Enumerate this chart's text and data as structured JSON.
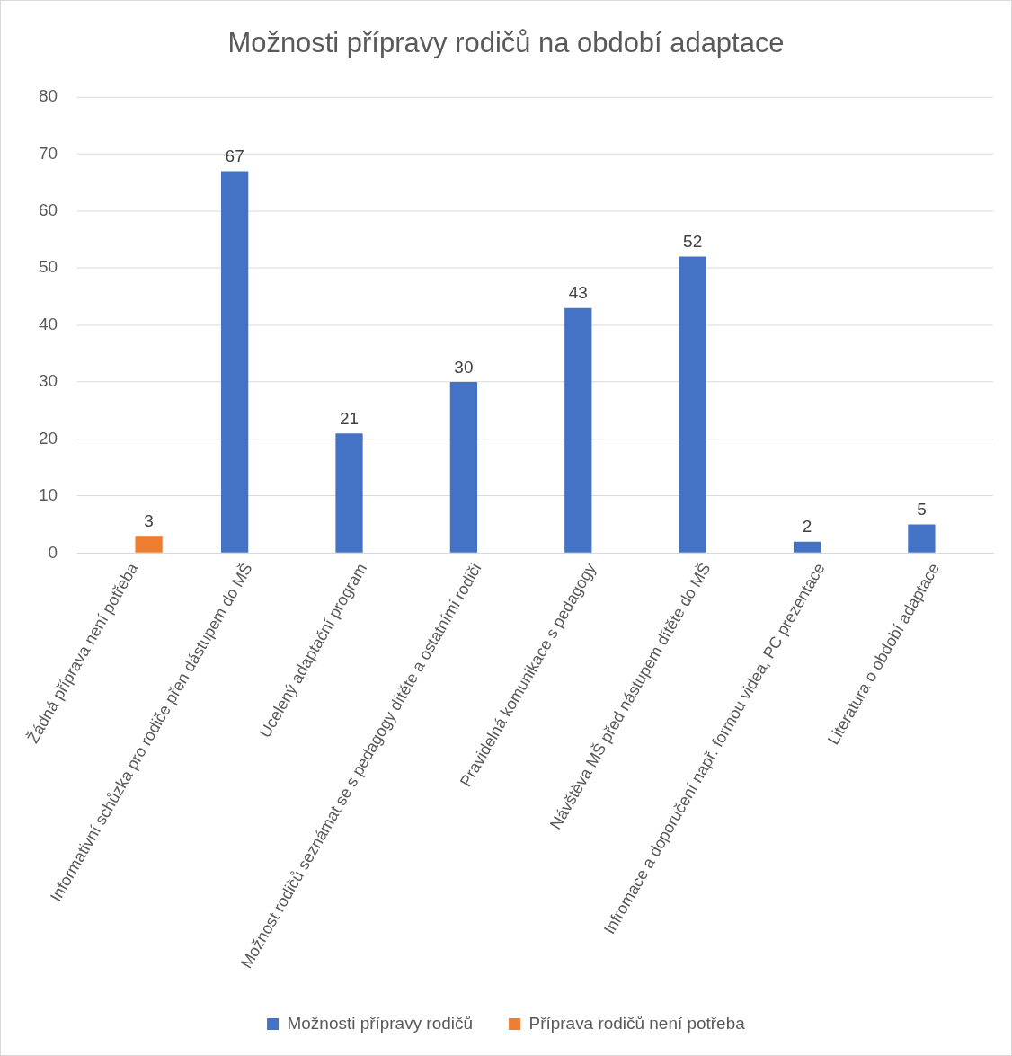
{
  "chart_data": {
    "type": "bar",
    "title": "Možnosti přípravy rodičů na období adaptace",
    "categories": [
      "Žádná příprava není potřeba",
      "Informativní schůzka pro rodiče přen dástupem do MŠ",
      "Ucelený adaptační program",
      "Možnost rodičů seznámat se s pedagogy dítěte a ostatními rodiči",
      "Pravidelná komunikace s pedagogy",
      "Návštěva MŠ před nástupem dítěte do MŠ",
      "Infromace a doporučení např. formou videa, PC prezentace",
      "Literatura o období adaptace"
    ],
    "series": [
      {
        "name": "Možnosti přípravy rodičů",
        "color": "#4472c4",
        "values": [
          null,
          67,
          21,
          30,
          43,
          52,
          2,
          5
        ]
      },
      {
        "name": "Příprava rodičů není potřeba",
        "color": "#ed7d31",
        "values": [
          3,
          null,
          null,
          null,
          null,
          null,
          null,
          null
        ]
      }
    ],
    "ylim": [
      0,
      80
    ],
    "yticks": [
      0,
      10,
      20,
      30,
      40,
      50,
      60,
      70,
      80
    ],
    "grid": "y",
    "legend": "bottom",
    "data_labels": true
  }
}
